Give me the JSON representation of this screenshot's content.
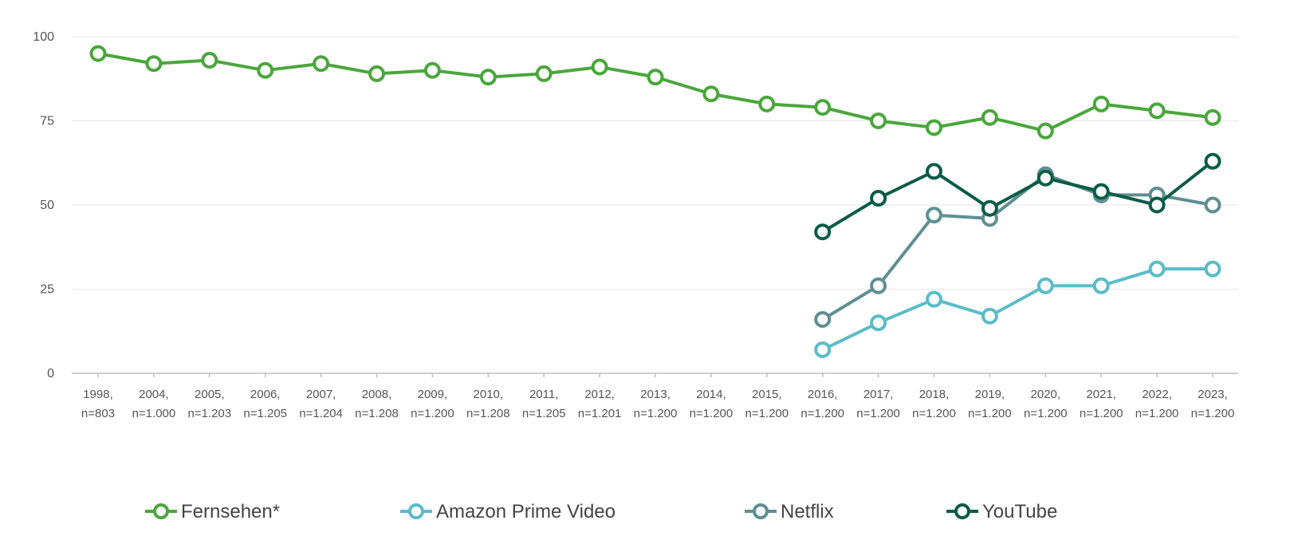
{
  "chart_data": {
    "type": "line",
    "title": "",
    "xlabel": "",
    "ylabel": "",
    "ylim": [
      0,
      100
    ],
    "yticks": [
      0,
      25,
      50,
      75,
      100
    ],
    "grid": true,
    "legend_position": "bottom",
    "categories": [
      {
        "year": "1998,",
        "n": "n=803"
      },
      {
        "year": "2004,",
        "n": "n=1.000"
      },
      {
        "year": "2005,",
        "n": "n=1.203"
      },
      {
        "year": "2006,",
        "n": "n=1.205"
      },
      {
        "year": "2007,",
        "n": "n=1.204"
      },
      {
        "year": "2008,",
        "n": "n=1.208"
      },
      {
        "year": "2009,",
        "n": "n=1.200"
      },
      {
        "year": "2010,",
        "n": "n=1.208"
      },
      {
        "year": "2011,",
        "n": "n=1.205"
      },
      {
        "year": "2012,",
        "n": "n=1.201"
      },
      {
        "year": "2013,",
        "n": "n=1.200"
      },
      {
        "year": "2014,",
        "n": "n=1.200"
      },
      {
        "year": "2015,",
        "n": "n=1.200"
      },
      {
        "year": "2016,",
        "n": "n=1.200"
      },
      {
        "year": "2017,",
        "n": "n=1.200"
      },
      {
        "year": "2018,",
        "n": "n=1.200"
      },
      {
        "year": "2019,",
        "n": "n=1.200"
      },
      {
        "year": "2020,",
        "n": "n=1.200"
      },
      {
        "year": "2021,",
        "n": "n=1.200"
      },
      {
        "year": "2022,",
        "n": "n=1.200"
      },
      {
        "year": "2023,",
        "n": "n=1.200"
      }
    ],
    "series": [
      {
        "name": "Fernsehen*",
        "color": "#4aa63c",
        "values": [
          95,
          92,
          93,
          90,
          92,
          89,
          90,
          88,
          89,
          91,
          88,
          83,
          80,
          79,
          75,
          73,
          76,
          72,
          80,
          78,
          76
        ]
      },
      {
        "name": "Amazon Prime Video",
        "color": "#5bbcc8",
        "values": [
          null,
          null,
          null,
          null,
          null,
          null,
          null,
          null,
          null,
          null,
          null,
          null,
          null,
          7,
          15,
          22,
          17,
          26,
          26,
          31,
          31
        ]
      },
      {
        "name": "Netflix",
        "color": "#5f8f92",
        "values": [
          null,
          null,
          null,
          null,
          null,
          null,
          null,
          null,
          null,
          null,
          null,
          null,
          null,
          16,
          26,
          47,
          46,
          59,
          53,
          53,
          50
        ]
      },
      {
        "name": "YouTube",
        "color": "#0b5c45",
        "values": [
          null,
          null,
          null,
          null,
          null,
          null,
          null,
          null,
          null,
          null,
          null,
          null,
          null,
          42,
          52,
          60,
          49,
          58,
          54,
          50,
          63
        ]
      }
    ]
  }
}
